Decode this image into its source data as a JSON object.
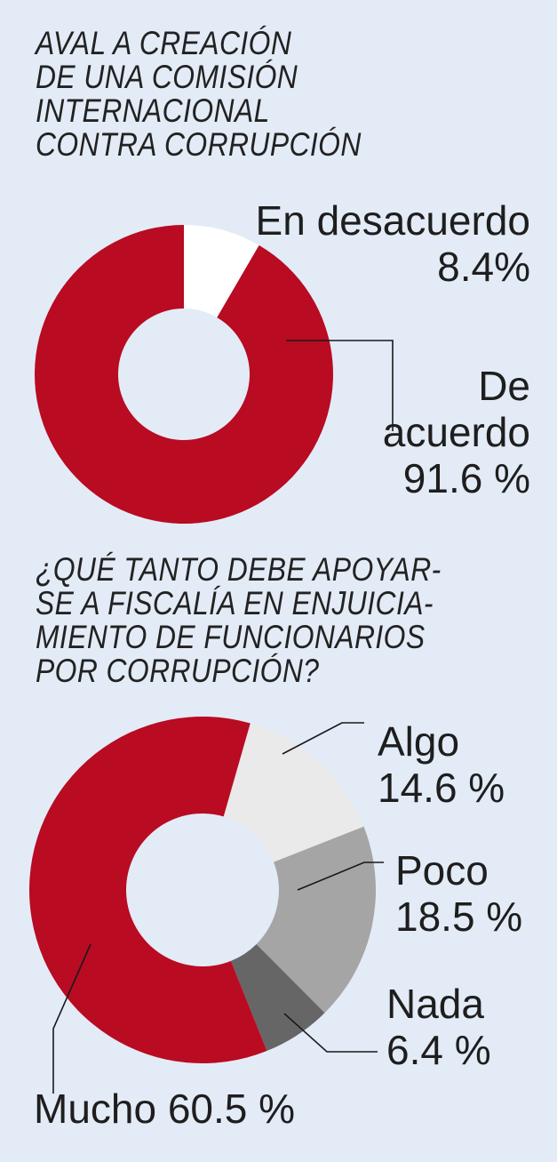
{
  "chart_data": [
    {
      "type": "pie",
      "title_lines": [
        "AVAL A CREACIÓN",
        "DE UNA COMISIÓN",
        "INTERNACIONAL",
        "CONTRA CORRUPCIÓN"
      ],
      "slices": [
        {
          "label": "En desacuerdo",
          "value": 8.4,
          "value_text": "8.4%",
          "color": "#ffffff"
        },
        {
          "label": "De acuerdo",
          "label_lines": [
            "De",
            "acuerdo"
          ],
          "value": 91.6,
          "value_text": "91.6 %",
          "color": "#b90b22"
        }
      ]
    },
    {
      "type": "pie",
      "title_lines": [
        "¿QUÉ TANTO DEBE APOYAR-",
        "SE A FISCALÍA EN ENJUICIA-",
        "MIENTO DE FUNCIONARIOS",
        "POR CORRUPCIÓN?"
      ],
      "slices": [
        {
          "label": "Algo",
          "value": 14.6,
          "value_text": "14.6 %",
          "color": "#eaeaea"
        },
        {
          "label": "Poco",
          "value": 18.5,
          "value_text": "18.5 %",
          "color": "#a5a5a5"
        },
        {
          "label": "Nada",
          "value": 6.4,
          "value_text": "6.4 %",
          "color": "#666666"
        },
        {
          "label": "Mucho",
          "value": 60.5,
          "value_text": "60.5 %",
          "label_text": "Mucho 60.5 %",
          "color": "#b90b22"
        }
      ]
    }
  ]
}
